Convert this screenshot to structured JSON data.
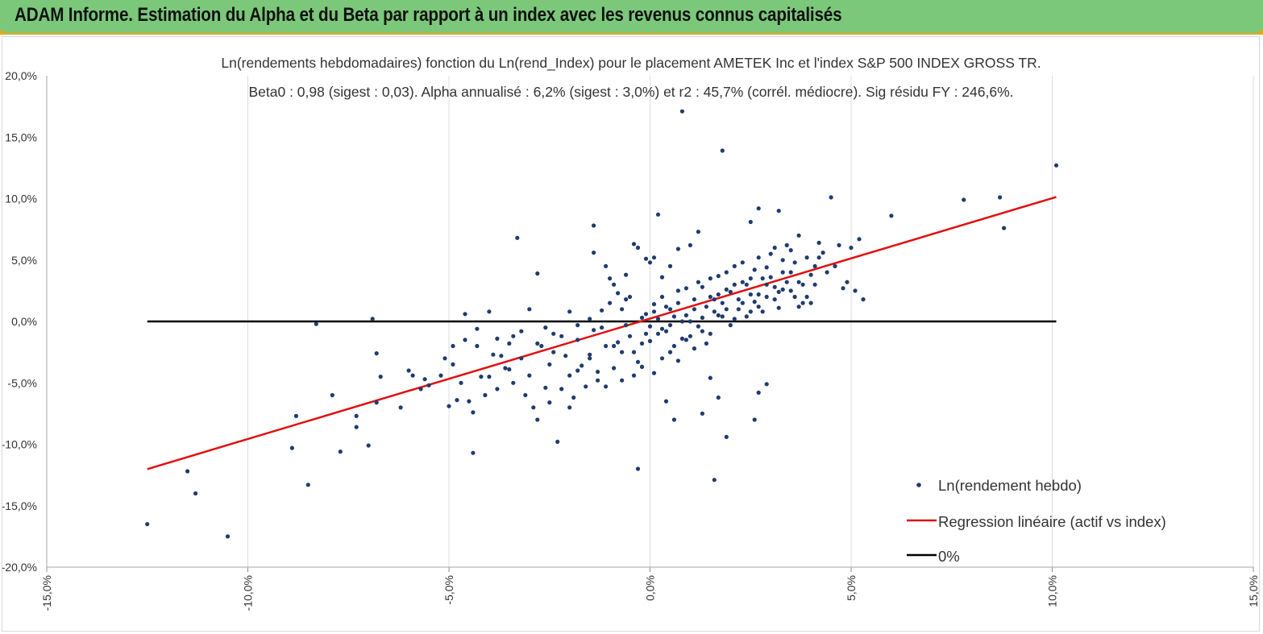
{
  "banner": {
    "title": "ADAM Informe. Estimation du Alpha et du Beta par rapport à un index avec les revenus connus capitalisés"
  },
  "chart_data": {
    "type": "scatter",
    "title": "Ln(rendements hebdomadaires) fonction du Ln(rend_Index) pour le placement AMETEK Inc et l'index S&P 500 INDEX GROSS TR.",
    "subtitle": "Beta0 : 0,98  (sigest : 0,03). Alpha annualisé : 6,2% (sigest : 3,0%) et r2 : 45,7% (corrél. médiocre). Sig résidu FY : 246,6%.",
    "xlabel": "",
    "ylabel": "",
    "xlim": [
      -0.15,
      0.15
    ],
    "ylim": [
      -0.2,
      0.2
    ],
    "x_ticks": [
      "-15,0%",
      "-10,0%",
      "-5,0%",
      "0,0%",
      "5,0%",
      "10,0%",
      "15,0%"
    ],
    "y_ticks": [
      "20,0%",
      "15,0%",
      "10,0%",
      "5,0%",
      "0,0%",
      "-5,0%",
      "-10,0%",
      "-15,0%",
      "-20,0%"
    ],
    "grid": "vertical",
    "legend_position": "bottom-right",
    "colors": {
      "points": "#1f3c6e",
      "regression": "#e01010",
      "zero": "#000000",
      "banner": "#7bc87a",
      "accent": "#e6a818"
    },
    "series": [
      {
        "name": "Ln(rendement hebdo)",
        "kind": "scatter",
        "points": [
          [
            -0.125,
            -0.165
          ],
          [
            -0.115,
            -0.122
          ],
          [
            -0.113,
            -0.14
          ],
          [
            -0.105,
            -0.175
          ],
          [
            -0.089,
            -0.103
          ],
          [
            -0.088,
            -0.077
          ],
          [
            -0.085,
            -0.133
          ],
          [
            -0.083,
            -0.002
          ],
          [
            -0.079,
            -0.06
          ],
          [
            -0.077,
            -0.106
          ],
          [
            -0.073,
            -0.086
          ],
          [
            -0.073,
            -0.077
          ],
          [
            -0.07,
            -0.101
          ],
          [
            -0.069,
            0.002
          ],
          [
            -0.068,
            -0.026
          ],
          [
            -0.068,
            -0.066
          ],
          [
            -0.067,
            -0.045
          ],
          [
            -0.062,
            -0.07
          ],
          [
            -0.06,
            -0.04
          ],
          [
            -0.059,
            -0.044
          ],
          [
            -0.057,
            -0.055
          ],
          [
            -0.056,
            -0.047
          ],
          [
            -0.055,
            -0.052
          ],
          [
            -0.052,
            -0.044
          ],
          [
            -0.051,
            -0.03
          ],
          [
            -0.05,
            -0.069
          ],
          [
            -0.049,
            -0.035
          ],
          [
            -0.048,
            -0.064
          ],
          [
            -0.047,
            -0.05
          ],
          [
            -0.046,
            0.006
          ],
          [
            -0.045,
            -0.065
          ],
          [
            -0.044,
            -0.074
          ],
          [
            -0.043,
            -0.02
          ],
          [
            -0.042,
            -0.045
          ],
          [
            -0.041,
            -0.06
          ],
          [
            -0.04,
            -0.045
          ],
          [
            -0.039,
            -0.027
          ],
          [
            -0.038,
            -0.055
          ],
          [
            -0.037,
            -0.028
          ],
          [
            -0.036,
            -0.038
          ],
          [
            -0.035,
            -0.039
          ],
          [
            -0.034,
            -0.012
          ],
          [
            -0.034,
            -0.05
          ],
          [
            -0.033,
            0.068
          ],
          [
            -0.032,
            -0.03
          ],
          [
            -0.031,
            -0.06
          ],
          [
            -0.03,
            -0.044
          ],
          [
            -0.029,
            -0.07
          ],
          [
            -0.028,
            0.039
          ],
          [
            -0.027,
            -0.02
          ],
          [
            -0.026,
            -0.054
          ],
          [
            -0.025,
            -0.035
          ],
          [
            -0.024,
            -0.01
          ],
          [
            -0.023,
            -0.098
          ],
          [
            -0.022,
            -0.055
          ],
          [
            -0.021,
            -0.028
          ],
          [
            -0.02,
            -0.044
          ],
          [
            -0.019,
            -0.062
          ],
          [
            -0.018,
            -0.015
          ],
          [
            -0.017,
            -0.036
          ],
          [
            -0.016,
            -0.053
          ],
          [
            -0.015,
            -0.027
          ],
          [
            -0.014,
            -0.007
          ],
          [
            -0.013,
            -0.041
          ],
          [
            -0.012,
            0.009
          ],
          [
            -0.011,
            -0.053
          ],
          [
            -0.01,
            0.035
          ],
          [
            -0.009,
            -0.02
          ],
          [
            -0.008,
            -0.017
          ],
          [
            -0.007,
            -0.048
          ],
          [
            -0.006,
            -0.003
          ],
          [
            -0.005,
            -0.012
          ],
          [
            -0.004,
            -0.025
          ],
          [
            -0.003,
            -0.033
          ],
          [
            -0.002,
            0.003
          ],
          [
            -0.001,
            -0.01
          ],
          [
            0.0,
            -0.016
          ],
          [
            0.001,
            0.008
          ],
          [
            0.002,
            -0.01
          ],
          [
            0.003,
            -0.006
          ],
          [
            0.004,
            0.012
          ],
          [
            0.005,
            -0.003
          ],
          [
            0.006,
            -0.02
          ],
          [
            0.007,
            0.015
          ],
          [
            0.008,
            0.0
          ],
          [
            0.009,
            0.027
          ],
          [
            0.01,
            -0.012
          ],
          [
            0.011,
            0.01
          ],
          [
            0.012,
            0.032
          ],
          [
            0.013,
            0.003
          ],
          [
            0.014,
            -0.018
          ],
          [
            0.015,
            0.02
          ],
          [
            0.016,
            0.008
          ],
          [
            0.017,
            0.037
          ],
          [
            0.018,
            0.015
          ],
          [
            0.019,
            0.026
          ],
          [
            0.02,
            -0.003
          ],
          [
            0.021,
            0.045
          ],
          [
            0.022,
            0.018
          ],
          [
            0.023,
            0.032
          ],
          [
            0.024,
            0.004
          ],
          [
            0.025,
            0.022
          ],
          [
            0.026,
            0.042
          ],
          [
            0.027,
            0.012
          ],
          [
            0.028,
            0.035
          ],
          [
            0.029,
            0.02
          ],
          [
            0.03,
            0.055
          ],
          [
            0.031,
            0.028
          ],
          [
            0.032,
            0.011
          ],
          [
            0.033,
            0.04
          ],
          [
            0.034,
            0.062
          ],
          [
            0.035,
            0.025
          ],
          [
            0.036,
            0.048
          ],
          [
            0.037,
            0.032
          ],
          [
            0.038,
            0.015
          ],
          [
            0.039,
            0.052
          ],
          [
            0.04,
            0.038
          ],
          [
            0.041,
            0.03
          ],
          [
            0.042,
            0.064
          ],
          [
            0.043,
            0.056
          ],
          [
            0.045,
            0.101
          ],
          [
            0.046,
            0.045
          ],
          [
            0.047,
            0.062
          ],
          [
            0.048,
            0.027
          ],
          [
            0.049,
            0.032
          ],
          [
            0.05,
            0.06
          ],
          [
            0.051,
            0.025
          ],
          [
            0.052,
            0.067
          ],
          [
            0.053,
            0.018
          ],
          [
            0.06,
            0.086
          ],
          [
            0.078,
            0.099
          ],
          [
            0.087,
            0.101
          ],
          [
            0.088,
            0.076
          ],
          [
            0.101,
            0.127
          ],
          [
            0.013,
            -0.075
          ],
          [
            0.015,
            -0.046
          ],
          [
            0.017,
            -0.062
          ],
          [
            0.016,
            -0.129
          ],
          [
            0.019,
            -0.094
          ],
          [
            0.026,
            -0.08
          ],
          [
            0.027,
            -0.058
          ],
          [
            0.029,
            -0.051
          ],
          [
            0.006,
            -0.08
          ],
          [
            0.004,
            -0.065
          ],
          [
            -0.003,
            -0.12
          ],
          [
            -0.004,
            0.063
          ],
          [
            -0.003,
            0.06
          ],
          [
            -0.001,
            0.051
          ],
          [
            0.0,
            0.048
          ],
          [
            0.001,
            0.052
          ],
          [
            0.002,
            0.087
          ],
          [
            0.003,
            0.036
          ],
          [
            0.005,
            0.045
          ],
          [
            0.007,
            0.059
          ],
          [
            0.01,
            0.062
          ],
          [
            0.012,
            0.073
          ],
          [
            0.008,
            0.171
          ],
          [
            0.018,
            0.139
          ],
          [
            0.025,
            0.081
          ],
          [
            0.027,
            0.092
          ],
          [
            0.032,
            0.09
          ],
          [
            -0.014,
            0.078
          ],
          [
            -0.014,
            0.056
          ],
          [
            -0.011,
            0.045
          ],
          [
            -0.009,
            0.03
          ],
          [
            -0.008,
            0.023
          ],
          [
            -0.006,
            0.038
          ],
          [
            -0.005,
            0.02
          ],
          [
            -0.006,
            0.018
          ],
          [
            -0.007,
            0.01
          ],
          [
            -0.01,
            0.015
          ],
          [
            -0.012,
            -0.005
          ],
          [
            -0.015,
            0.002
          ],
          [
            -0.018,
            -0.003
          ],
          [
            -0.02,
            0.008
          ],
          [
            -0.022,
            -0.012
          ],
          [
            -0.024,
            -0.025
          ],
          [
            -0.026,
            -0.005
          ],
          [
            -0.028,
            -0.018
          ],
          [
            -0.03,
            0.01
          ],
          [
            -0.032,
            -0.008
          ],
          [
            -0.035,
            -0.018
          ],
          [
            -0.038,
            -0.014
          ],
          [
            -0.04,
            0.008
          ],
          [
            -0.043,
            -0.006
          ],
          [
            -0.046,
            -0.015
          ],
          [
            -0.049,
            -0.02
          ],
          [
            -0.044,
            -0.107
          ],
          [
            -0.028,
            -0.08
          ],
          [
            -0.025,
            -0.066
          ],
          [
            -0.02,
            -0.07
          ],
          [
            -0.018,
            -0.04
          ],
          [
            -0.015,
            -0.03
          ],
          [
            -0.013,
            -0.048
          ],
          [
            -0.011,
            -0.02
          ],
          [
            -0.009,
            -0.038
          ],
          [
            -0.007,
            -0.025
          ],
          [
            -0.004,
            -0.044
          ],
          [
            -0.002,
            -0.037
          ],
          [
            0.001,
            -0.042
          ],
          [
            0.003,
            -0.03
          ],
          [
            0.005,
            -0.025
          ],
          [
            0.007,
            -0.032
          ],
          [
            0.009,
            -0.015
          ],
          [
            0.011,
            -0.022
          ],
          [
            0.013,
            -0.008
          ],
          [
            0.015,
            -0.01
          ],
          [
            0.017,
            0.005
          ],
          [
            0.019,
            0.01
          ],
          [
            0.021,
            0.002
          ],
          [
            0.023,
            0.015
          ],
          [
            0.025,
            0.008
          ],
          [
            0.027,
            0.022
          ],
          [
            0.029,
            0.03
          ],
          [
            0.031,
            0.018
          ],
          [
            0.033,
            0.026
          ],
          [
            0.035,
            0.04
          ],
          [
            0.037,
            0.012
          ],
          [
            0.039,
            0.02
          ],
          [
            0.041,
            0.045
          ],
          [
            -0.001,
            0.006
          ],
          [
            0.001,
            0.014
          ],
          [
            0.003,
            0.02
          ],
          [
            0.005,
            0.01
          ],
          [
            0.007,
            0.025
          ],
          [
            0.009,
            0.005
          ],
          [
            0.011,
            0.018
          ],
          [
            0.013,
            0.028
          ],
          [
            0.015,
            0.035
          ],
          [
            0.017,
            0.022
          ],
          [
            0.019,
            0.04
          ],
          [
            0.021,
            0.03
          ],
          [
            0.023,
            0.048
          ],
          [
            0.025,
            0.035
          ],
          [
            0.027,
            0.052
          ],
          [
            0.029,
            0.044
          ],
          [
            0.031,
            0.06
          ],
          [
            0.033,
            0.05
          ],
          [
            0.035,
            0.058
          ],
          [
            0.037,
            0.07
          ],
          [
            -0.002,
            -0.018
          ],
          [
            0.0,
            -0.004
          ],
          [
            0.002,
            0.002
          ],
          [
            0.004,
            -0.008
          ],
          [
            0.006,
            0.004
          ],
          [
            0.008,
            -0.014
          ],
          [
            0.01,
            0.0
          ],
          [
            0.012,
            -0.004
          ],
          [
            0.014,
            0.012
          ],
          [
            0.016,
            0.018
          ],
          [
            0.018,
            0.004
          ],
          [
            0.02,
            0.024
          ],
          [
            0.022,
            0.01
          ],
          [
            0.024,
            0.03
          ],
          [
            0.026,
            0.016
          ],
          [
            0.028,
            0.008
          ],
          [
            0.03,
            0.036
          ],
          [
            0.032,
            0.024
          ],
          [
            0.034,
            0.032
          ],
          [
            0.036,
            0.02
          ],
          [
            0.038,
            0.03
          ],
          [
            0.04,
            0.015
          ],
          [
            0.042,
            0.052
          ],
          [
            0.044,
            0.04
          ]
        ]
      },
      {
        "name": "Regression linéaire (actif vs index)",
        "kind": "line",
        "points": [
          [
            -0.125,
            -0.1202
          ],
          [
            0.101,
            0.1013
          ]
        ]
      },
      {
        "name": "0%",
        "kind": "line",
        "points": [
          [
            -0.125,
            0.0
          ],
          [
            0.101,
            0.0
          ]
        ]
      }
    ]
  }
}
